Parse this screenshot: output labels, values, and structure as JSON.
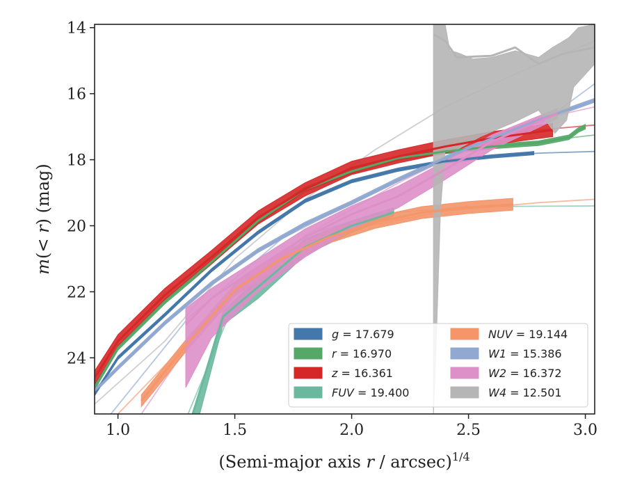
{
  "chart_data": {
    "type": "line",
    "xlabel": "(Semi-major axis r / arcsec)^1/4",
    "ylabel": "m(< r) (mag)",
    "xlim": [
      0.9,
      3.04
    ],
    "ylim": [
      25.7,
      13.9
    ],
    "y_inverted": true,
    "grid": false,
    "legend_position": "lower-right",
    "x_ticks": [
      1.0,
      1.5,
      2.0,
      2.5,
      3.0
    ],
    "x_tick_labels": [
      "1.0",
      "1.5",
      "2.0",
      "2.5",
      "3.0"
    ],
    "y_ticks": [
      14,
      16,
      18,
      20,
      22,
      24
    ],
    "y_tick_labels": [
      "14",
      "16",
      "18",
      "20",
      "22",
      "24"
    ],
    "series": [
      {
        "name": "g = 17.679",
        "color": "#4477aa",
        "band_halfwidth": 0.05,
        "data": [
          [
            0.9,
            25.1
          ],
          [
            1.0,
            24.0
          ],
          [
            1.2,
            22.7
          ],
          [
            1.4,
            21.35
          ],
          [
            1.6,
            20.2
          ],
          [
            1.8,
            19.25
          ],
          [
            2.0,
            18.65
          ],
          [
            2.2,
            18.3
          ],
          [
            2.4,
            18.05
          ],
          [
            2.6,
            17.9
          ],
          [
            2.78,
            17.8
          ]
        ],
        "model": [
          [
            2.6,
            17.9
          ],
          [
            2.8,
            17.8
          ],
          [
            3.04,
            17.75
          ]
        ]
      },
      {
        "name": "r = 16.970",
        "color": "#55a868",
        "band_halfwidth": 0.07,
        "data": [
          [
            0.9,
            24.9
          ],
          [
            1.0,
            23.7
          ],
          [
            1.2,
            22.3
          ],
          [
            1.4,
            21.1
          ],
          [
            1.6,
            19.85
          ],
          [
            1.8,
            18.9
          ],
          [
            2.0,
            18.35
          ],
          [
            2.2,
            17.95
          ],
          [
            2.4,
            17.75
          ],
          [
            2.6,
            17.6
          ],
          [
            2.8,
            17.5
          ],
          [
            2.93,
            17.32
          ],
          [
            2.97,
            17.1
          ],
          [
            3.0,
            17.0
          ]
        ],
        "model": [
          [
            2.5,
            17.65
          ],
          [
            2.8,
            17.45
          ],
          [
            3.04,
            17.25
          ]
        ]
      },
      {
        "name": "z = 16.361",
        "color": "#d62728",
        "band_halfwidth": 0.2,
        "data": [
          [
            0.9,
            24.6
          ],
          [
            1.0,
            23.5
          ],
          [
            1.2,
            22.1
          ],
          [
            1.4,
            20.95
          ],
          [
            1.6,
            19.75
          ],
          [
            1.8,
            18.9
          ],
          [
            2.0,
            18.25
          ],
          [
            2.2,
            17.9
          ],
          [
            2.4,
            17.6
          ],
          [
            2.6,
            17.35
          ],
          [
            2.86,
            17.1
          ]
        ],
        "model": [
          [
            2.6,
            17.3
          ],
          [
            2.8,
            17.1
          ],
          [
            3.04,
            16.95
          ]
        ]
      },
      {
        "name": "FUV = 19.400",
        "color": "#6ab99f",
        "data": [
          [
            1.32,
            25.7
          ],
          [
            1.45,
            22.75
          ],
          [
            1.6,
            21.85
          ],
          [
            1.8,
            20.65
          ],
          [
            2.0,
            20.0
          ],
          [
            2.18,
            19.6
          ]
        ],
        "band_lower": [
          [
            1.32,
            25.7
          ],
          [
            1.35,
            25.7
          ],
          [
            1.45,
            23.0
          ],
          [
            1.6,
            22.2
          ],
          [
            1.8,
            20.9
          ],
          [
            2.0,
            20.2
          ],
          [
            2.18,
            19.7
          ]
        ],
        "band_upper": [
          [
            1.32,
            25.7
          ],
          [
            1.45,
            22.6
          ],
          [
            1.6,
            21.6
          ],
          [
            1.8,
            20.4
          ],
          [
            2.0,
            19.85
          ],
          [
            2.18,
            19.45
          ]
        ],
        "model": [
          [
            1.3,
            25.7
          ],
          [
            1.5,
            22.3
          ],
          [
            1.8,
            20.3
          ],
          [
            2.1,
            19.65
          ],
          [
            2.5,
            19.42
          ],
          [
            3.04,
            19.4
          ]
        ]
      },
      {
        "name": "NUV = 19.144",
        "color": "#f4956a",
        "band_halfwidth": 0.18,
        "data": [
          [
            1.1,
            25.3
          ],
          [
            1.3,
            23.55
          ],
          [
            1.5,
            21.95
          ],
          [
            1.7,
            21.0
          ],
          [
            1.9,
            20.35
          ],
          [
            2.1,
            19.9
          ],
          [
            2.3,
            19.6
          ],
          [
            2.5,
            19.45
          ],
          [
            2.69,
            19.35
          ]
        ],
        "model": [
          [
            1.0,
            25.7
          ],
          [
            1.3,
            23.5
          ],
          [
            1.6,
            21.6
          ],
          [
            2.0,
            20.1
          ],
          [
            2.4,
            19.55
          ],
          [
            2.8,
            19.3
          ],
          [
            3.04,
            19.2
          ]
        ]
      },
      {
        "name": "W1 = 15.386",
        "color": "#91a8d0",
        "band_halfwidth": 0.06,
        "data": [
          [
            0.9,
            25.0
          ],
          [
            1.0,
            24.3
          ],
          [
            1.2,
            22.95
          ],
          [
            1.4,
            21.75
          ],
          [
            1.6,
            20.75
          ],
          [
            1.8,
            19.95
          ],
          [
            2.0,
            19.3
          ],
          [
            2.2,
            18.6
          ],
          [
            2.4,
            17.95
          ],
          [
            2.6,
            17.35
          ],
          [
            2.8,
            16.8
          ],
          [
            3.04,
            16.2
          ]
        ],
        "model": [
          [
            0.97,
            25.7
          ],
          [
            1.3,
            22.8
          ],
          [
            1.7,
            20.4
          ],
          [
            2.1,
            18.95
          ],
          [
            2.5,
            17.65
          ],
          [
            2.8,
            16.95
          ],
          [
            3.04,
            15.7
          ]
        ]
      },
      {
        "name": "W2 = 16.372",
        "color": "#dd8fc8",
        "data": [
          [
            1.29,
            23.0
          ],
          [
            1.4,
            22.2
          ],
          [
            1.6,
            21.25
          ],
          [
            1.8,
            20.35
          ],
          [
            2.0,
            19.65
          ],
          [
            2.2,
            19.1
          ],
          [
            2.4,
            18.3
          ],
          [
            2.6,
            17.45
          ],
          [
            2.88,
            16.6
          ]
        ],
        "band_lower": [
          [
            1.29,
            24.9
          ],
          [
            1.4,
            23.4
          ],
          [
            1.6,
            22.0
          ],
          [
            1.8,
            20.95
          ],
          [
            2.0,
            20.1
          ],
          [
            2.2,
            19.45
          ],
          [
            2.4,
            18.6
          ],
          [
            2.6,
            17.7
          ],
          [
            2.88,
            16.75
          ]
        ],
        "band_upper": [
          [
            1.29,
            22.5
          ],
          [
            1.4,
            21.9
          ],
          [
            1.6,
            21.0
          ],
          [
            1.8,
            20.1
          ],
          [
            2.0,
            19.4
          ],
          [
            2.2,
            18.8
          ],
          [
            2.4,
            18.05
          ],
          [
            2.6,
            17.25
          ],
          [
            2.88,
            16.45
          ]
        ],
        "model": [
          [
            1.1,
            25.7
          ],
          [
            1.4,
            22.6
          ],
          [
            1.8,
            20.3
          ],
          [
            2.2,
            18.7
          ],
          [
            2.6,
            17.3
          ],
          [
            2.85,
            16.7
          ],
          [
            3.04,
            16.4
          ]
        ]
      },
      {
        "name": "W4 = 12.501",
        "color": "#b5b5b5",
        "data": [
          [
            2.35,
            14.2
          ],
          [
            2.4,
            14.4
          ],
          [
            2.45,
            14.9
          ],
          [
            2.6,
            14.85
          ],
          [
            2.7,
            14.6
          ],
          [
            2.8,
            15.1
          ],
          [
            2.9,
            14.8
          ],
          [
            3.04,
            14.6
          ]
        ],
        "band_lower": [
          [
            2.35,
            25.7
          ],
          [
            2.36,
            24.0
          ],
          [
            2.38,
            19.5
          ],
          [
            2.4,
            17.7
          ],
          [
            2.45,
            17.7
          ],
          [
            2.55,
            17.3
          ],
          [
            2.7,
            16.85
          ],
          [
            2.8,
            16.5
          ],
          [
            2.87,
            17.2
          ],
          [
            2.92,
            16.8
          ],
          [
            2.95,
            15.8
          ],
          [
            3.04,
            15.1
          ]
        ],
        "band_upper": [
          [
            2.35,
            13.9
          ],
          [
            2.4,
            13.9
          ],
          [
            2.42,
            14.7
          ],
          [
            2.45,
            14.75
          ],
          [
            2.52,
            14.95
          ],
          [
            2.6,
            14.9
          ],
          [
            2.7,
            14.7
          ],
          [
            2.8,
            14.9
          ],
          [
            2.86,
            14.6
          ],
          [
            2.93,
            14.3
          ],
          [
            2.97,
            14.0
          ],
          [
            3.04,
            13.9
          ]
        ],
        "model": [
          [
            0.9,
            25.4
          ],
          [
            1.2,
            23.5
          ],
          [
            1.5,
            21.0
          ],
          [
            1.8,
            19.2
          ],
          [
            2.1,
            17.7
          ],
          [
            2.4,
            16.4
          ],
          [
            2.7,
            15.4
          ],
          [
            3.04,
            14.4
          ]
        ]
      }
    ]
  },
  "legend": [
    {
      "var": "g",
      "rest": " = 17.679",
      "color": "#4477aa"
    },
    {
      "var": "r",
      "rest": " = 16.970",
      "color": "#55a868"
    },
    {
      "var": "z",
      "rest": " = 16.361",
      "color": "#d62728"
    },
    {
      "var": "FUV",
      "rest": " = 19.400",
      "color": "#6ab99f"
    },
    {
      "var": "NUV",
      "rest": " = 19.144",
      "color": "#f4956a"
    },
    {
      "var": "W1",
      "rest": " = 15.386",
      "color": "#91a8d0"
    },
    {
      "var": "W2",
      "rest": " = 16.372",
      "color": "#dd8fc8"
    },
    {
      "var": "W4",
      "rest": " = 12.501",
      "color": "#b5b5b5"
    }
  ]
}
